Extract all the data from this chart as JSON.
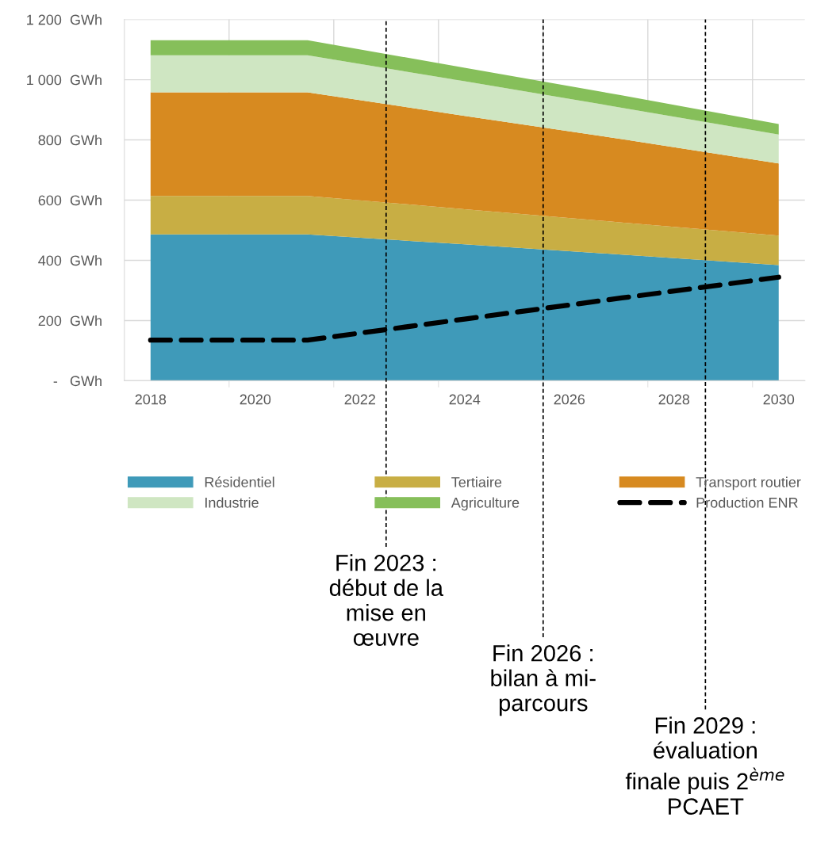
{
  "chart_data": {
    "type": "area",
    "stacked": true,
    "x": [
      2018,
      2021,
      2024,
      2027,
      2030
    ],
    "series": [
      {
        "name": "Résidentiel",
        "color": "#3f9ab9",
        "values": [
          486,
          486,
          453,
          419,
          384
        ]
      },
      {
        "name": "Tertiaire",
        "color": "#c8ae44",
        "values": [
          128,
          128,
          117,
          107,
          98
        ]
      },
      {
        "name": "Transport routier",
        "color": "#d78a20",
        "values": [
          344,
          344,
          310,
          277,
          240
        ]
      },
      {
        "name": "Industrie",
        "color": "#cfe6c2",
        "values": [
          123,
          123,
          115,
          104,
          96
        ]
      },
      {
        "name": "Agriculture",
        "color": "#86bf5a",
        "values": [
          50,
          50,
          45,
          41,
          35
        ]
      },
      {
        "name": "Production ENR",
        "type": "line",
        "color": "#000000",
        "line_style": "dashed",
        "values": [
          135,
          135,
          205,
          275,
          344
        ]
      }
    ],
    "xlim": [
      2017.5,
      2030.5
    ],
    "xticks": [
      {
        "value": 2018,
        "label": "2018"
      },
      {
        "value": 2020,
        "label": "2020"
      },
      {
        "value": 2022,
        "label": "2022"
      },
      {
        "value": 2024,
        "label": "2024"
      },
      {
        "value": 2026,
        "label": "2026"
      },
      {
        "value": 2028,
        "label": "2028"
      },
      {
        "value": 2030,
        "label": "2030"
      },
      {
        "value": 2019.5,
        "label": null
      },
      {
        "value": 2021.5,
        "label": null
      },
      {
        "value": 2023.5,
        "label": null
      },
      {
        "value": 2025.5,
        "label": null
      },
      {
        "value": 2027.5,
        "label": null
      },
      {
        "value": 2029.5,
        "label": null
      }
    ],
    "ylim": [
      0,
      1200
    ],
    "yticks": [
      {
        "value": 0,
        "label": "-   GWh"
      },
      {
        "value": 200,
        "label": "200  GWh"
      },
      {
        "value": 400,
        "label": "400  GWh"
      },
      {
        "value": 600,
        "label": "600  GWh"
      },
      {
        "value": 800,
        "label": "800  GWh"
      },
      {
        "value": 1000,
        "label": "1 000  GWh"
      },
      {
        "value": 1200,
        "label": "1 200  GWh"
      }
    ],
    "grid": true,
    "legend": "bottom",
    "ref_lines": [
      {
        "axis": "x",
        "value": 2022.5,
        "label": "Fin 2023 :\ndébut de la\nmise en\nœuvre",
        "color": "#000000",
        "line_style": "dashed"
      },
      {
        "axis": "x",
        "value": 2025.5,
        "label": "Fin 2026 :\nbilan à mi-\nparcours",
        "color": "#000000",
        "line_style": "dashed"
      },
      {
        "axis": "x",
        "value": 2028.6,
        "label": "Fin 2029 :\névaluation\nfinale puis 2$^{ème}$\nPCAET",
        "color": "#000000",
        "line_style": "dashed"
      }
    ]
  }
}
